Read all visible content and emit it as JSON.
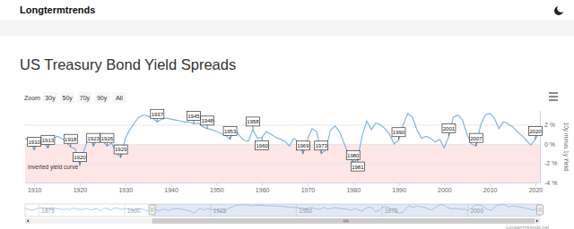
{
  "header": {
    "brand": "Longtermtrends"
  },
  "zoom": {
    "label": "Zoom",
    "buttons": [
      "30y",
      "50y",
      "70y",
      "90y",
      "All"
    ]
  },
  "credits": "Longtermtrends.net",
  "chart_data": {
    "type": "line",
    "title": "US Treasury Bond Yield Spreads",
    "y_label": "10y minus 1y Yield",
    "color": "#7cb5ec",
    "grid": true,
    "xlim": [
      1908,
      2021
    ],
    "xticks": [
      1910,
      1920,
      1930,
      1940,
      1950,
      1960,
      1970,
      1980,
      1990,
      2000,
      2010,
      2020
    ],
    "ylim": [
      -4,
      3.5
    ],
    "yticks": [
      {
        "value": 2,
        "label": "2 %"
      },
      {
        "value": 0,
        "label": "0 %"
      },
      {
        "value": -2,
        "label": "-2 %"
      },
      {
        "value": -4,
        "label": "-4 %"
      }
    ],
    "x": [
      1871,
      1872,
      1873,
      1874,
      1875,
      1876,
      1877,
      1878,
      1879,
      1880,
      1881,
      1882,
      1883,
      1884,
      1885,
      1886,
      1887,
      1888,
      1889,
      1890,
      1891,
      1892,
      1893,
      1894,
      1895,
      1896,
      1897,
      1898,
      1899,
      1900,
      1901,
      1902,
      1903,
      1904,
      1905,
      1906,
      1907,
      1908,
      1909,
      1910,
      1911,
      1912,
      1913,
      1914,
      1915,
      1916,
      1917,
      1918,
      1919,
      1920,
      1921,
      1922,
      1923,
      1924,
      1925,
      1926,
      1927,
      1928,
      1929,
      1930,
      1931,
      1932,
      1933,
      1934,
      1935,
      1936,
      1937,
      1938,
      1939,
      1940,
      1941,
      1942,
      1943,
      1944,
      1945,
      1946,
      1947,
      1948,
      1949,
      1950,
      1951,
      1952,
      1953,
      1954,
      1955,
      1956,
      1957,
      1958,
      1959,
      1960,
      1961,
      1962,
      1963,
      1964,
      1965,
      1966,
      1967,
      1968,
      1969,
      1970,
      1971,
      1972,
      1973,
      1974,
      1975,
      1976,
      1977,
      1978,
      1979,
      1980,
      1981,
      1982,
      1983,
      1984,
      1985,
      1986,
      1987,
      1988,
      1989,
      1990,
      1991,
      1992,
      1993,
      1994,
      1995,
      1996,
      1997,
      1998,
      1999,
      2000,
      2001,
      2002,
      2003,
      2004,
      2005,
      2006,
      2007,
      2008,
      2009,
      2010,
      2011,
      2012,
      2013,
      2014,
      2015,
      2016,
      2017,
      2018,
      2019,
      2020,
      2021
    ],
    "values": [
      0.8,
      0.3,
      -0.4,
      0.5,
      1.0,
      1.2,
      1.0,
      0.9,
      1.3,
      0.8,
      0.6,
      0.2,
      0.5,
      0.1,
      0.9,
      0.6,
      0.2,
      0.4,
      0.7,
      0.1,
      0.3,
      0.8,
      -0.5,
      1.0,
      0.6,
      -0.2,
      1.1,
      0.9,
      0.3,
      0.5,
      0.7,
      0.2,
      -0.3,
      0.9,
      0.6,
      -0.4,
      -0.8,
      0.6,
      0.3,
      -0.6,
      0.4,
      0.2,
      -0.4,
      0.5,
      0.8,
      0.6,
      0.2,
      -0.3,
      -0.5,
      -2.2,
      -0.6,
      0.8,
      -0.2,
      0.6,
      0.3,
      -0.2,
      0.1,
      -0.9,
      -1.4,
      0.6,
      1.5,
      2.2,
      2.8,
      3.0,
      2.9,
      2.7,
      2.3,
      2.6,
      2.7,
      2.6,
      2.5,
      2.4,
      2.3,
      2.3,
      2.1,
      2.2,
      1.8,
      1.6,
      1.5,
      1.3,
      1.1,
      0.9,
      0.5,
      1.6,
      0.9,
      0.4,
      0.3,
      1.5,
      0.6,
      0.7,
      1.3,
      1.0,
      0.7,
      0.5,
      0.3,
      -0.2,
      0.6,
      0.2,
      -1.0,
      0.5,
      1.6,
      1.3,
      -1.0,
      -0.6,
      1.4,
      1.9,
      1.3,
      0.1,
      -1.1,
      -2.0,
      -1.5,
      0.9,
      2.4,
      1.5,
      2.2,
      2.0,
      1.6,
      1.0,
      0.0,
      0.4,
      2.0,
      3.2,
      2.8,
      1.5,
      0.6,
      0.8,
      0.6,
      0.2,
      0.5,
      -0.4,
      0.8,
      2.8,
      3.0,
      2.5,
      1.0,
      0.0,
      -0.2,
      2.0,
      3.0,
      3.2,
      2.7,
      1.6,
      2.3,
      2.1,
      1.8,
      1.3,
      0.9,
      0.4,
      -0.1,
      0.5,
      1.3
    ],
    "bands": [
      {
        "from": -4,
        "to": 0,
        "label": "inverted yield curve",
        "color": "#ffe6e6"
      }
    ],
    "annotations": [
      {
        "x": 1910,
        "text": "1910"
      },
      {
        "x": 1913,
        "text": "1913"
      },
      {
        "x": 1918,
        "text": "1918"
      },
      {
        "x": 1920,
        "text": "1920"
      },
      {
        "x": 1923,
        "text": "1923"
      },
      {
        "x": 1926,
        "text": "1926"
      },
      {
        "x": 1929,
        "text": "1929"
      },
      {
        "x": 1937,
        "text": "1937"
      },
      {
        "x": 1945,
        "text": "1945"
      },
      {
        "x": 1948,
        "text": "1948"
      },
      {
        "x": 1953,
        "text": "1953"
      },
      {
        "x": 1958,
        "text": "1958"
      },
      {
        "x": 1960,
        "text": "1960"
      },
      {
        "x": 1969,
        "text": "1969"
      },
      {
        "x": 1973,
        "text": "1973"
      },
      {
        "x": 1980,
        "text": "1980"
      },
      {
        "x": 1981,
        "text": "1981"
      },
      {
        "x": 1990,
        "text": "1990"
      },
      {
        "x": 2001,
        "text": "2001"
      },
      {
        "x": 2007,
        "text": "2007"
      },
      {
        "x": 2020,
        "text": "2020"
      }
    ],
    "navigator": {
      "xlim": [
        1871,
        2021
      ],
      "xticks": [
        1875,
        1900,
        1925,
        1950,
        1975,
        2000
      ]
    }
  }
}
